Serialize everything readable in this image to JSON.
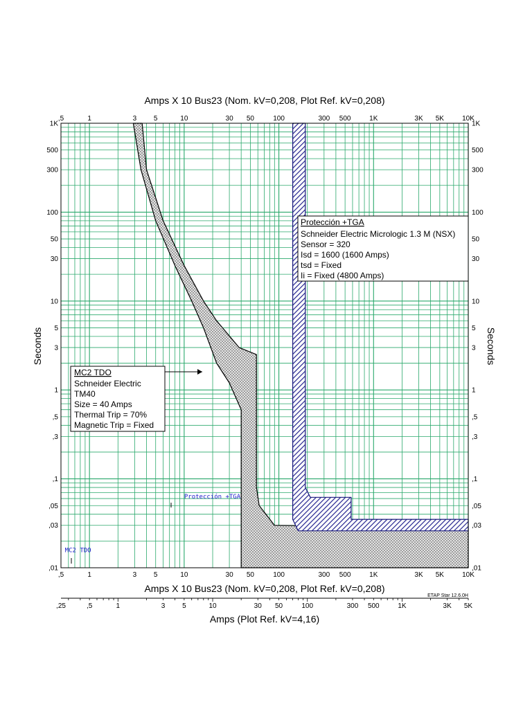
{
  "chart_data": {
    "type": "scatter",
    "title_top": "Amps  X  10   Bus23 (Nom. kV=0,208, Plot Ref. kV=0,208)",
    "title_bottom": "Amps  X  10   Bus23 (Nom. kV=0,208, Plot Ref. kV=0,208)",
    "xlabel": "Amps (Plot Ref. kV=4,16)",
    "ylabel_left": "Seconds",
    "ylabel_right": "Seconds",
    "xscale": "log",
    "yscale": "log",
    "xlim": [
      0.5,
      10000
    ],
    "ylim": [
      0.01,
      1000
    ],
    "grid": true,
    "grid_color": "#2aa86b",
    "x_ticks": [
      {
        "v": 0.5,
        "t": ",5"
      },
      {
        "v": 1,
        "t": "1"
      },
      {
        "v": 3,
        "t": "3"
      },
      {
        "v": 5,
        "t": "5"
      },
      {
        "v": 10,
        "t": "10"
      },
      {
        "v": 30,
        "t": "30"
      },
      {
        "v": 50,
        "t": "50"
      },
      {
        "v": 100,
        "t": "100"
      },
      {
        "v": 300,
        "t": "300"
      },
      {
        "v": 500,
        "t": "500"
      },
      {
        "v": 1000,
        "t": "1K"
      },
      {
        "v": 3000,
        "t": "3K"
      },
      {
        "v": 5000,
        "t": "5K"
      },
      {
        "v": 10000,
        "t": "10K"
      }
    ],
    "y_ticks": [
      {
        "v": 1000,
        "t": "1K"
      },
      {
        "v": 500,
        "t": "500"
      },
      {
        "v": 300,
        "t": "300"
      },
      {
        "v": 100,
        "t": "100"
      },
      {
        "v": 50,
        "t": "50"
      },
      {
        "v": 30,
        "t": "30"
      },
      {
        "v": 10,
        "t": "10"
      },
      {
        "v": 5,
        "t": "5"
      },
      {
        "v": 3,
        "t": "3"
      },
      {
        "v": 1,
        "t": "1"
      },
      {
        "v": 0.5,
        "t": ",5"
      },
      {
        "v": 0.3,
        "t": ",3"
      },
      {
        "v": 0.1,
        "t": ",1"
      },
      {
        "v": 0.05,
        "t": ",05"
      },
      {
        "v": 0.03,
        "t": ",03"
      },
      {
        "v": 0.01,
        "t": ",01"
      }
    ],
    "secondary_axis": {
      "range": [
        0.25,
        5000
      ],
      "ticks": [
        {
          "v": 0.25,
          "t": ",25"
        },
        {
          "v": 0.5,
          "t": ",5"
        },
        {
          "v": 1,
          "t": "1"
        },
        {
          "v": 3,
          "t": "3"
        },
        {
          "v": 5,
          "t": "5"
        },
        {
          "v": 10,
          "t": "10"
        },
        {
          "v": 30,
          "t": "30"
        },
        {
          "v": 50,
          "t": "50"
        },
        {
          "v": 100,
          "t": "100"
        },
        {
          "v": 300,
          "t": "300"
        },
        {
          "v": 500,
          "t": "500"
        },
        {
          "v": 1000,
          "t": "1K"
        },
        {
          "v": 3000,
          "t": "3K"
        },
        {
          "v": 5000,
          "t": "5K"
        }
      ]
    },
    "series": [
      {
        "name": "MC2 TDO",
        "style": "dotted-band",
        "color": "#000000",
        "fill": "#dcdcdc",
        "lower_edge": [
          [
            2.9,
            1000
          ],
          [
            3.5,
            300
          ],
          [
            5,
            80
          ],
          [
            8,
            25
          ],
          [
            12,
            10
          ],
          [
            16,
            5
          ],
          [
            22,
            2
          ],
          [
            30,
            1.2
          ],
          [
            40,
            0.6
          ],
          [
            40,
            0.01
          ]
        ],
        "upper_edge": [
          [
            3.6,
            1000
          ],
          [
            4,
            300
          ],
          [
            6,
            80
          ],
          [
            10,
            25
          ],
          [
            16,
            10
          ],
          [
            22,
            6
          ],
          [
            38,
            3
          ],
          [
            58,
            2.5
          ],
          [
            58,
            0.08
          ],
          [
            62,
            0.05
          ],
          [
            90,
            0.03
          ],
          [
            10000,
            0.028
          ]
        ],
        "bottom": 0.01
      },
      {
        "name": "Protección +TGA",
        "style": "hatched-band",
        "color": "#1a1a8c",
        "fill": "#3b3bb0",
        "lower_edge": [
          [
            140,
            1000
          ],
          [
            140,
            0.035
          ],
          [
            160,
            0.026
          ],
          [
            10000,
            0.026
          ]
        ],
        "upper_edge": [
          [
            190,
            1000
          ],
          [
            190,
            0.08
          ],
          [
            215,
            0.062
          ],
          [
            580,
            0.062
          ],
          [
            580,
            0.035
          ],
          [
            10000,
            0.035
          ]
        ]
      }
    ],
    "annotations": [
      {
        "name": "tga-label",
        "title": "Protección +TGA",
        "lines": [
          "Schneider Electric  Micrologic 1.3 M (NSX)",
          "Sensor = 320",
          "Isd = 1600 (1600 Amps)",
          "tsd = Fixed",
          "Ii = Fixed (4800 Amps)"
        ]
      },
      {
        "name": "mc2-label",
        "title": "MC2 TDO",
        "lines": [
          "Schneider Electric",
          "TM40",
          "Size = 40 Amps",
          "Thermal Trip = 70%",
          "Magnetic Trip = Fixed"
        ]
      }
    ],
    "curve_tags": [
      {
        "text": "Protección +TGA",
        "x": 10,
        "y": 0.06
      },
      {
        "text": "MC2 TDO",
        "x": 0.55,
        "y": 0.015
      }
    ],
    "footer": "ETAP Star 12.6.0H"
  }
}
